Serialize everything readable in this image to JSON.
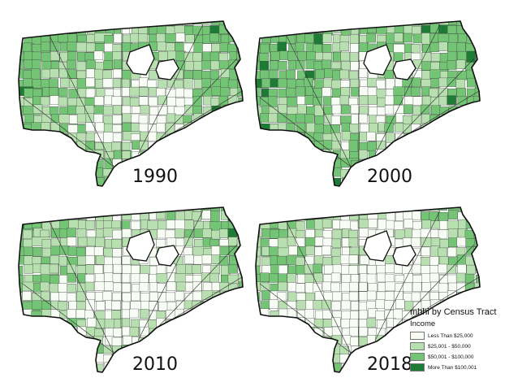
{
  "legend": {
    "title": "mhhi by Census Tract",
    "subtitle": "Income",
    "items": [
      {
        "label": "Less Than $25,000",
        "color": "#f7fcf5"
      },
      {
        "label": "$25,001 - $50,000",
        "color": "#b7dfb0"
      },
      {
        "label": "$50,001 - $100,000",
        "color": "#74c476"
      },
      {
        "label": "More Than $100,001",
        "color": "#1e7b35"
      }
    ]
  },
  "panels": [
    {
      "year": "1990",
      "seed": 19,
      "bias": 0.2
    },
    {
      "year": "2000",
      "seed": 27,
      "bias": 0.45
    },
    {
      "year": "2010",
      "seed": 41,
      "bias": -0.15
    },
    {
      "year": "2018",
      "seed": 53,
      "bias": -0.35
    }
  ]
}
